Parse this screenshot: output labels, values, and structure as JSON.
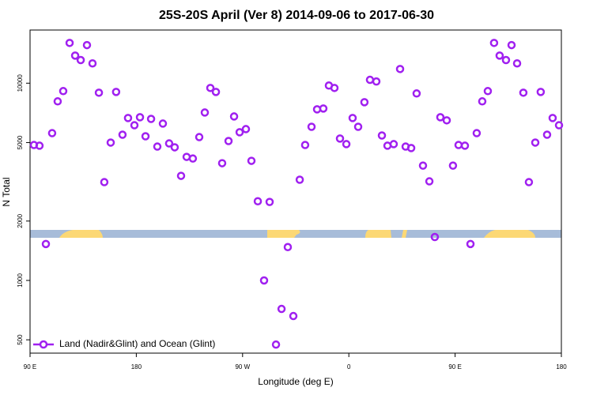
{
  "chart_data": {
    "type": "scatter",
    "title": "25S-20S April (Ver 8)   2014-09-06 to 2017-06-30",
    "x_label": "Longitude (deg E)",
    "y_label": "N Total",
    "xlim": [
      90,
      540
    ],
    "xticks": [
      {
        "value": 90,
        "label": "90 E"
      },
      180,
      {
        "value": 270,
        "label": "90 W"
      },
      {
        "value": 360,
        "label": "0"
      },
      {
        "value": 450,
        "label": "90 E"
      },
      {
        "value": 540,
        "label": "180"
      }
    ],
    "ylim": [
      428,
      18600
    ],
    "y_log": true,
    "yticks": [
      500,
      1000,
      2000,
      5000,
      10000
    ],
    "legend": "bottom-left",
    "series": [
      {
        "name": "Land (Nadir&Glint) and Ocean (Glint)",
        "color": "#a020f0",
        "x": [
          93.3,
          98.0,
          103.4,
          108.7,
          113.4,
          118.1,
          123.5,
          128.2,
          132.9,
          138.2,
          142.9,
          148.3,
          152.9,
          158.3,
          162.9,
          168.3,
          173.0,
          178.4,
          183.1,
          187.8,
          192.5,
          197.8,
          202.5,
          207.8,
          212.5,
          217.9,
          222.6,
          227.9,
          233.3,
          238.0,
          242.7,
          247.4,
          252.7,
          258.1,
          262.8,
          267.5,
          272.8,
          277.5,
          282.9,
          288.2,
          292.9,
          298.3,
          303.0,
          308.3,
          313.0,
          318.4,
          323.0,
          328.4,
          333.1,
          338.4,
          343.1,
          347.8,
          352.5,
          357.9,
          363.2,
          367.9,
          373.2,
          377.9,
          383.3,
          388.0,
          392.7,
          398.0,
          403.4,
          408.1,
          412.8,
          417.4,
          422.8,
          428.2,
          432.8,
          437.5,
          442.9,
          448.2,
          452.9,
          458.3,
          463.0,
          468.3,
          473.0,
          477.7,
          483.0,
          487.7,
          493.1,
          497.8,
          502.5,
          507.8,
          512.5,
          517.9,
          522.5,
          527.9,
          532.6,
          538.0
        ],
        "values": [
          4860,
          4820,
          1530,
          5580,
          8090,
          9120,
          16000,
          13800,
          13100,
          15600,
          12600,
          8950,
          3150,
          5000,
          9030,
          5480,
          6660,
          6120,
          6720,
          5380,
          6590,
          4770,
          6240,
          4950,
          4730,
          3390,
          4230,
          4150,
          5330,
          7100,
          9460,
          9030,
          3930,
          5090,
          6780,
          5640,
          5850,
          4040,
          2520,
          1000,
          2500,
          473,
          717,
          1476,
          660,
          3240,
          4860,
          6010,
          7370,
          7440,
          9730,
          9460,
          5240,
          4910,
          6660,
          6010,
          8010,
          10400,
          10200,
          5430,
          4820,
          4910,
          11800,
          4770,
          4690,
          8870,
          3820,
          3180,
          1660,
          6720,
          6480,
          3820,
          4860,
          4820,
          1530,
          5580,
          8090,
          9120,
          16000,
          13800,
          13100,
          15600,
          12600,
          8950,
          3150,
          5000,
          9030,
          5480,
          6660,
          6120
        ]
      }
    ]
  }
}
